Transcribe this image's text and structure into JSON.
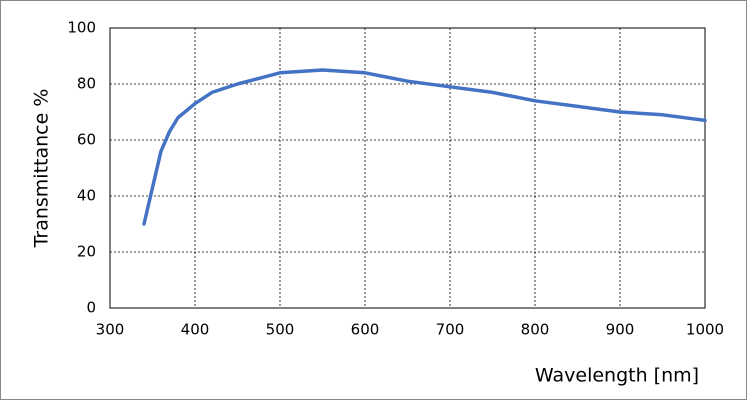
{
  "chart_data": {
    "type": "line",
    "x_label": "Wavelength [nm]",
    "y_label": "Transmittance %",
    "x": [
      340,
      350,
      360,
      370,
      380,
      400,
      420,
      450,
      500,
      550,
      600,
      650,
      700,
      750,
      800,
      850,
      900,
      950,
      1000
    ],
    "series": [
      {
        "name": "Transmittance",
        "color": "#4472c4",
        "values": [
          30,
          43,
          56,
          63,
          68,
          73,
          77,
          80,
          84,
          85,
          84,
          81,
          79,
          77,
          74,
          72,
          70,
          69,
          67
        ]
      }
    ],
    "xlim": [
      300,
      1000
    ],
    "xticks": [
      300,
      400,
      500,
      600,
      700,
      800,
      900,
      1000
    ],
    "ylim": [
      0,
      100
    ],
    "yticks": [
      0,
      20,
      40,
      60,
      80,
      100
    ],
    "grid": true
  }
}
